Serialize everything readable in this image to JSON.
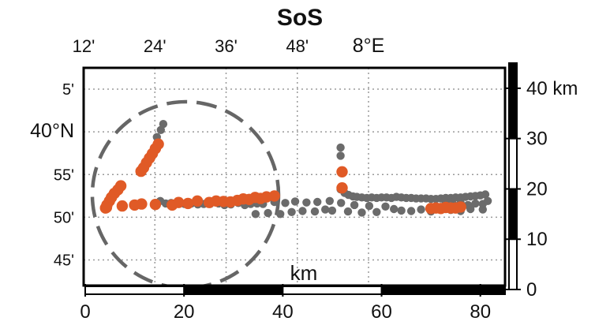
{
  "chart_data": {
    "type": "scatter",
    "title": "SoS",
    "map": {
      "lon_ticks": [
        {
          "value": 12,
          "label": "12'"
        },
        {
          "value": 24,
          "label": "24'"
        },
        {
          "value": 36,
          "label": "36'"
        },
        {
          "value": 48,
          "label": "48'"
        },
        {
          "value": 60,
          "label": "8°E"
        }
      ],
      "lat_ticks": [
        {
          "value": 65,
          "label": "5'"
        },
        {
          "value": 60,
          "label": "40°N"
        },
        {
          "value": 55,
          "label": "55'"
        },
        {
          "value": 50,
          "label": "50'"
        },
        {
          "value": 45,
          "label": "45'"
        }
      ],
      "lon_range": [
        12,
        83
      ],
      "lat_range": [
        42,
        67.5
      ]
    },
    "x_scale": {
      "label": "km",
      "ticks": [
        "0",
        "20",
        "40",
        "60",
        "80"
      ],
      "values": [
        0,
        20,
        40,
        60,
        80
      ],
      "range": [
        0,
        85
      ]
    },
    "y_scale": {
      "unit": "km",
      "ticks": [
        "0",
        "10",
        "20",
        "30",
        "40 km"
      ],
      "values": [
        0,
        10,
        20,
        30,
        40
      ],
      "range": [
        0,
        45
      ]
    },
    "series": [
      {
        "color": "#6b6b6b",
        "points": [
          [
            15.2,
            17.6
          ],
          [
            16.3,
            17.1
          ],
          [
            17.4,
            17.2
          ],
          [
            19.0,
            17.5
          ],
          [
            20.1,
            17.0
          ],
          [
            21.5,
            17.1
          ],
          [
            22.8,
            16.9
          ],
          [
            24.0,
            17.0
          ],
          [
            25.3,
            17.0
          ],
          [
            27.0,
            17.1
          ],
          [
            28.2,
            16.8
          ],
          [
            29.5,
            16.9
          ],
          [
            31.0,
            17.2
          ],
          [
            32.3,
            16.8
          ],
          [
            33.5,
            17.0
          ],
          [
            34.8,
            17.1
          ],
          [
            36.0,
            17.0
          ],
          [
            38.3,
            17.4
          ],
          [
            40.5,
            17.2
          ],
          [
            42.5,
            17.5
          ],
          [
            44.8,
            17.3
          ],
          [
            47.0,
            17.4
          ],
          [
            49.5,
            17.6
          ],
          [
            34.5,
            15.0
          ],
          [
            37.0,
            15.2
          ],
          [
            39.5,
            15.0
          ],
          [
            41.8,
            15.4
          ],
          [
            44.0,
            15.6
          ],
          [
            46.5,
            15.5
          ],
          [
            48.6,
            15.9
          ],
          [
            50.0,
            15.7
          ],
          [
            51.8,
            17.2
          ],
          [
            53.2,
            15.5
          ],
          [
            54.5,
            16.8
          ],
          [
            56.0,
            15.3
          ],
          [
            57.5,
            16.6
          ],
          [
            59.0,
            15.4
          ],
          [
            60.8,
            16.5
          ],
          [
            62.5,
            16.0
          ],
          [
            64.0,
            15.7
          ],
          [
            66.0,
            15.6
          ],
          [
            68.0,
            15.9
          ],
          [
            70.0,
            15.5
          ],
          [
            72.0,
            16.1
          ],
          [
            74.0,
            15.8
          ],
          [
            76.0,
            15.6
          ],
          [
            78.0,
            16.0
          ],
          [
            80.5,
            15.9
          ],
          [
            51.7,
            19.9
          ],
          [
            52.5,
            19.2
          ],
          [
            53.3,
            18.8
          ],
          [
            54.2,
            18.5
          ],
          [
            55.0,
            18.4
          ],
          [
            56.0,
            18.3
          ],
          [
            57.0,
            18.2
          ],
          [
            58.0,
            18.3
          ],
          [
            59.0,
            18.2
          ],
          [
            60.0,
            18.3
          ],
          [
            61.0,
            18.3
          ],
          [
            62.0,
            18.2
          ],
          [
            63.0,
            18.4
          ],
          [
            64.0,
            18.3
          ],
          [
            65.0,
            18.2
          ],
          [
            66.0,
            18.2
          ],
          [
            67.0,
            18.1
          ],
          [
            68.0,
            18.1
          ],
          [
            69.0,
            18.1
          ],
          [
            70.0,
            18.0
          ],
          [
            71.0,
            18.0
          ],
          [
            72.0,
            18.1
          ],
          [
            73.0,
            18.2
          ],
          [
            74.0,
            18.2
          ],
          [
            75.0,
            18.3
          ],
          [
            76.0,
            18.3
          ],
          [
            77.0,
            18.4
          ],
          [
            78.0,
            18.5
          ],
          [
            79.0,
            18.6
          ],
          [
            80.0,
            18.7
          ],
          [
            81.0,
            18.9
          ],
          [
            71.0,
            16.5
          ],
          [
            73.0,
            17.3
          ],
          [
            74.5,
            16.9
          ],
          [
            76.0,
            17.2
          ],
          [
            77.5,
            16.8
          ],
          [
            79.0,
            17.1
          ],
          [
            80.5,
            17.0
          ],
          [
            81.5,
            17.6
          ],
          [
            51.7,
            28.2
          ],
          [
            51.7,
            26.6
          ],
          [
            15.8,
            32.9
          ],
          [
            15.3,
            31.7
          ],
          [
            14.5,
            30.3
          ]
        ]
      },
      {
        "color": "#e05a26",
        "points": [
          [
            4.1,
            16.2
          ],
          [
            4.4,
            16.8
          ],
          [
            4.9,
            17.6
          ],
          [
            5.3,
            18.3
          ],
          [
            5.9,
            19.1
          ],
          [
            6.6,
            19.8
          ],
          [
            7.2,
            20.6
          ],
          [
            7.5,
            16.6
          ],
          [
            4.3,
            16.3
          ],
          [
            11.3,
            23.5
          ],
          [
            11.8,
            24.2
          ],
          [
            12.4,
            25.2
          ],
          [
            13.0,
            26.1
          ],
          [
            13.6,
            27.0
          ],
          [
            14.2,
            28.0
          ],
          [
            14.8,
            28.9
          ],
          [
            10.0,
            16.8
          ],
          [
            11.4,
            17.0
          ],
          [
            14.2,
            16.9
          ],
          [
            17.6,
            16.8
          ],
          [
            18.9,
            17.3
          ],
          [
            20.8,
            17.1
          ],
          [
            22.7,
            17.6
          ],
          [
            25.1,
            17.3
          ],
          [
            26.5,
            17.6
          ],
          [
            28.0,
            17.5
          ],
          [
            29.4,
            17.4
          ],
          [
            30.8,
            17.7
          ],
          [
            32.0,
            18.0
          ],
          [
            33.2,
            17.9
          ],
          [
            34.4,
            18.3
          ],
          [
            35.5,
            18.1
          ],
          [
            36.7,
            18.4
          ],
          [
            38.3,
            18.6
          ],
          [
            52.0,
            23.4
          ],
          [
            52.0,
            20.2
          ],
          [
            70.0,
            16.1
          ],
          [
            71.0,
            16.2
          ],
          [
            72.0,
            16.1
          ],
          [
            73.0,
            16.3
          ],
          [
            74.0,
            16.2
          ],
          [
            75.0,
            16.2
          ],
          [
            76.0,
            16.4
          ]
        ]
      }
    ],
    "legend": "none"
  },
  "colors": {
    "background": "#ffffff",
    "grid": "#9a9a9a",
    "frame": "#000000",
    "circle": "#666666",
    "gray_points": "#6b6b6b",
    "orange_points": "#e05a26"
  }
}
